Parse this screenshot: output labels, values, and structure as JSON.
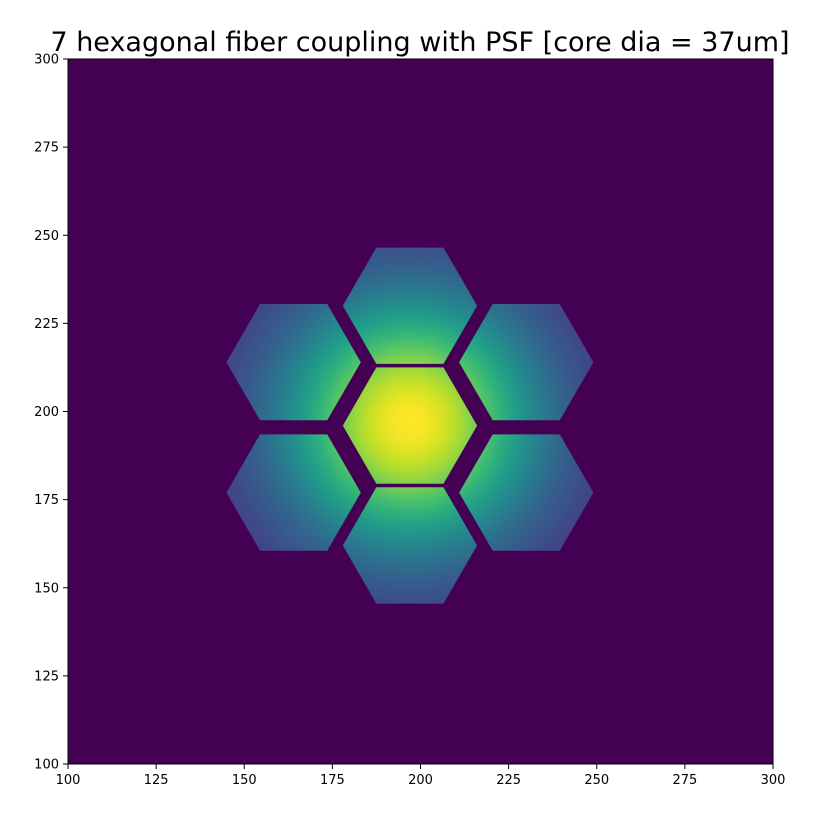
{
  "chart_data": {
    "type": "heatmap",
    "title": "7 hexagonal fiber coupling with PSF [core dia = 37um]",
    "xlabel": "",
    "ylabel": "",
    "xlim": [
      100,
      300
    ],
    "ylim": [
      100,
      300
    ],
    "x_ticks": [
      "100",
      "125",
      "150",
      "175",
      "200",
      "225",
      "250",
      "275",
      "300"
    ],
    "y_ticks": [
      "100",
      "125",
      "150",
      "175",
      "200",
      "225",
      "250",
      "275",
      "300"
    ],
    "colormap": "viridis",
    "background_value": 0,
    "psf_center": [
      197,
      197
    ],
    "hexagons": [
      {
        "name": "center",
        "center": [
          197,
          196
        ],
        "flat_to_flat": 33,
        "peak_value": 1.0
      },
      {
        "name": "top",
        "center": [
          197,
          230
        ],
        "flat_to_flat": 33,
        "peak_value": 0.62
      },
      {
        "name": "bottom",
        "center": [
          197,
          162
        ],
        "flat_to_flat": 33,
        "peak_value": 0.62
      },
      {
        "name": "upper-left",
        "center": [
          164,
          214
        ],
        "flat_to_flat": 33,
        "peak_value": 0.62
      },
      {
        "name": "upper-right",
        "center": [
          230,
          214
        ],
        "flat_to_flat": 33,
        "peak_value": 0.62
      },
      {
        "name": "lower-left",
        "center": [
          164,
          177
        ],
        "flat_to_flat": 33,
        "peak_value": 0.62
      },
      {
        "name": "lower-right",
        "center": [
          230,
          177
        ],
        "flat_to_flat": 33,
        "peak_value": 0.62
      }
    ],
    "psf_sigma": 20,
    "grid": false
  },
  "colors": {
    "background": "#440154",
    "figure": "#ffffff",
    "axis": "#000000"
  }
}
